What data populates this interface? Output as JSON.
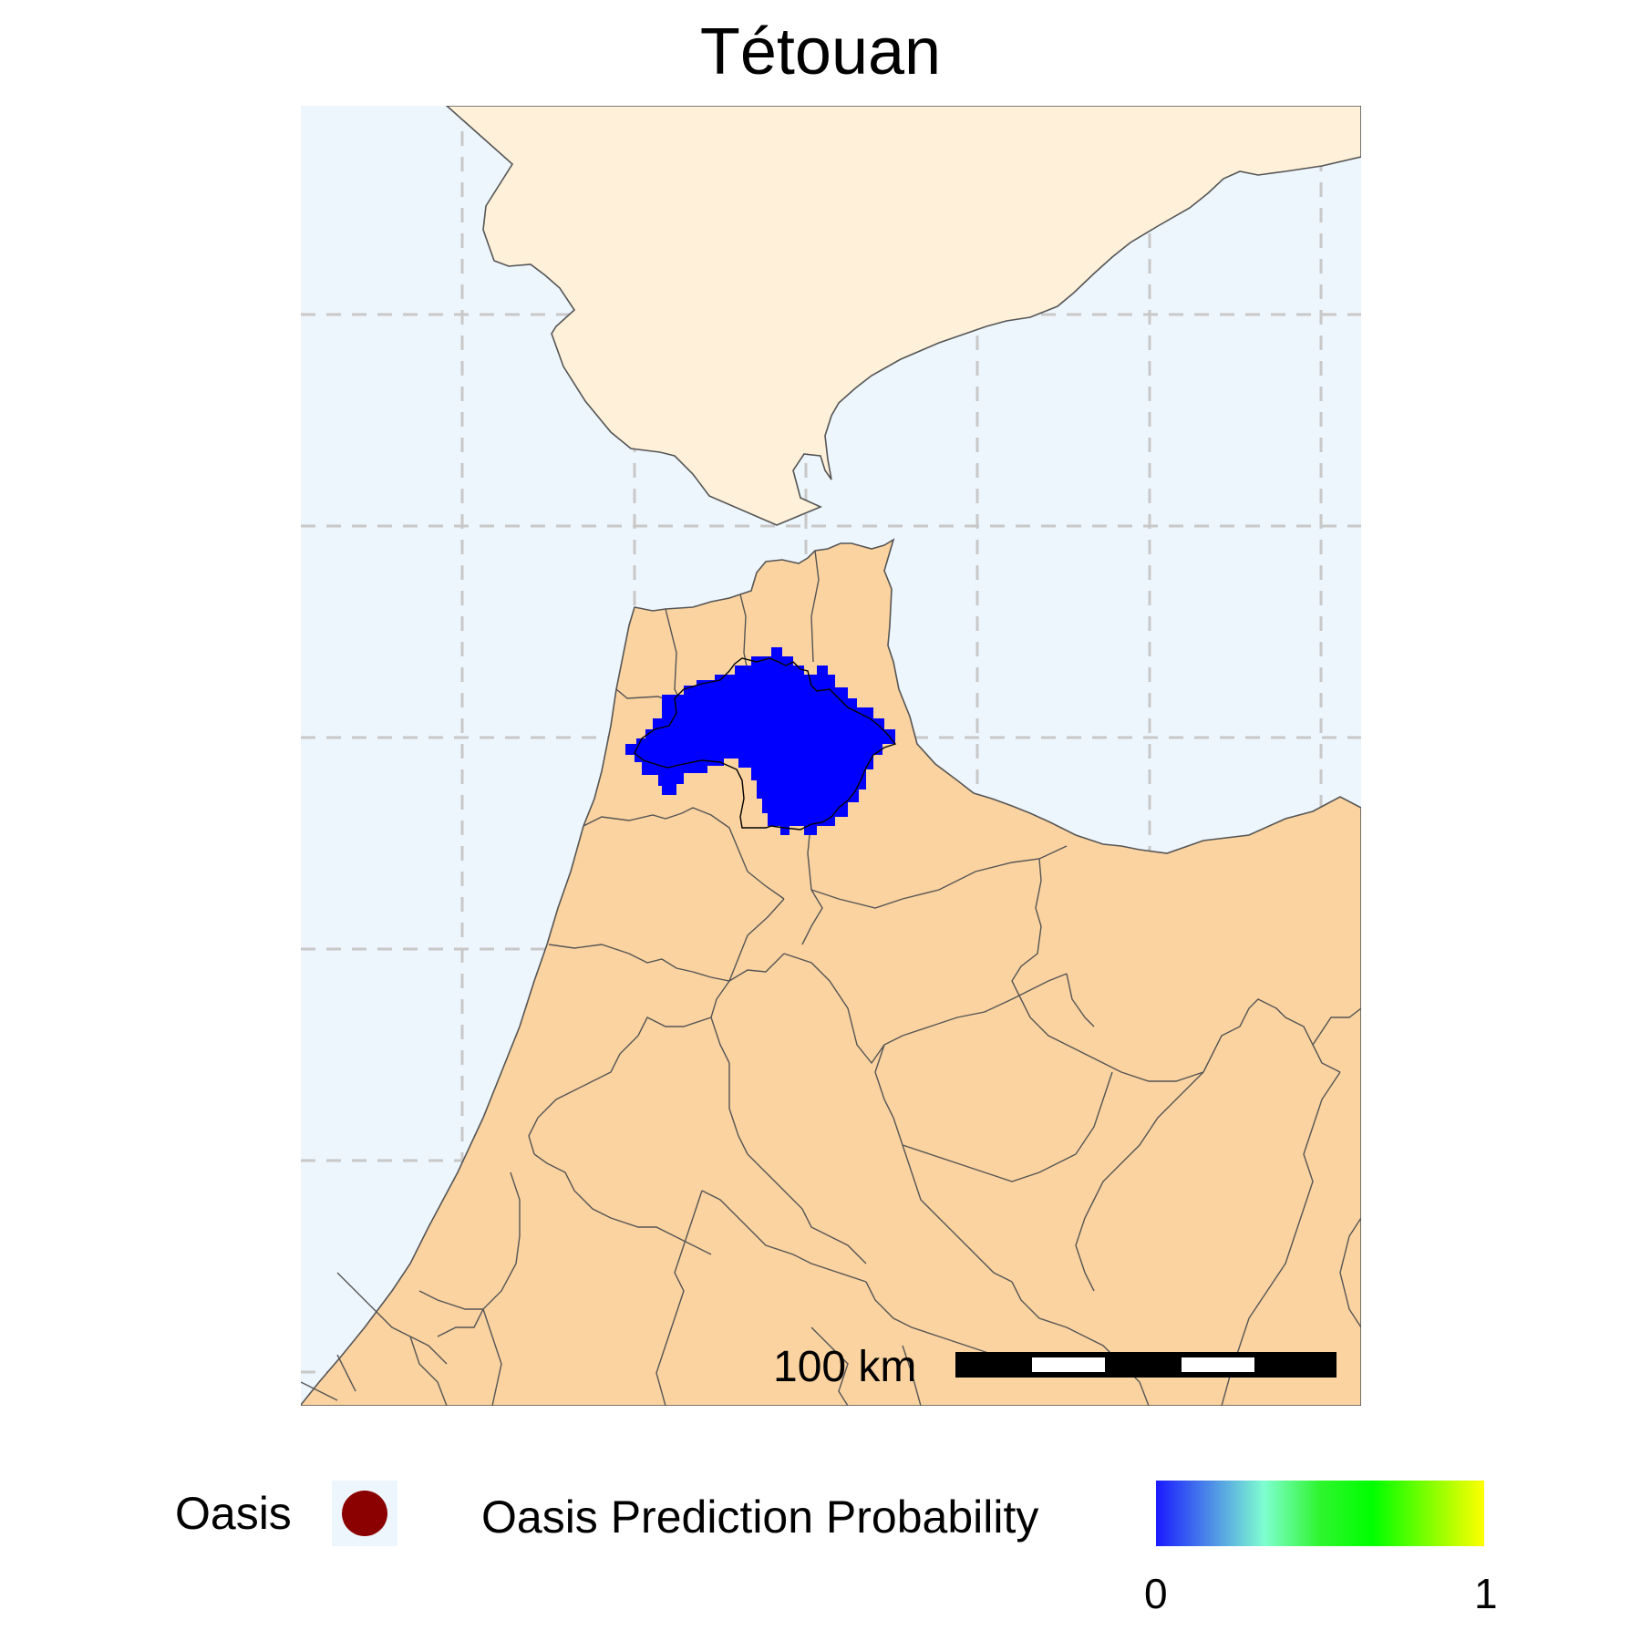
{
  "title": "Tétouan",
  "scale_bar": {
    "label": "100 km"
  },
  "legend": {
    "oasis_label": "Oasis",
    "oasis_color": "#8b0000",
    "probability_label": "Oasis Prediction Probability",
    "probability_min": "0",
    "probability_max": "1",
    "probability_colors": [
      "#1a1aff",
      "#7ffed0",
      "#00ff00",
      "#ffff00"
    ]
  },
  "colors": {
    "sea": "#eef6fd",
    "foreign_land": "#fef0d9",
    "country_land": "#fbd3a0",
    "prediction": "#0000ff",
    "graticule": "#c8c8c8",
    "boundary": "#555555"
  }
}
